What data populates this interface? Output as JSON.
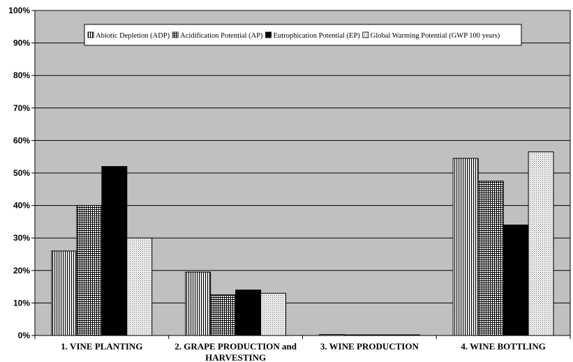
{
  "chart_data": {
    "type": "bar",
    "categories": [
      [
        "1. VINE PLANTING"
      ],
      [
        "2. GRAPE PRODUCTION and",
        "HARVESTING"
      ],
      [
        "3. WINE PRODUCTION"
      ],
      [
        "4. WINE BOTTLING"
      ]
    ],
    "series": [
      {
        "name": "Abiotic Depletion (ADP)",
        "values": [
          26,
          19.5,
          0.3,
          54.5
        ],
        "pattern": "vlines"
      },
      {
        "name": "Acidification Potential (AP)",
        "values": [
          40,
          12.5,
          0.2,
          47.5
        ],
        "pattern": "grid"
      },
      {
        "name": "Eutrophication Potential (EP)",
        "values": [
          52,
          14,
          0.2,
          34
        ],
        "pattern": "solid"
      },
      {
        "name": "Global Warming Potential (GWP 100 years)",
        "values": [
          30,
          13,
          0.2,
          56.5
        ],
        "pattern": "dots"
      }
    ],
    "ylim": [
      0,
      100
    ],
    "yticks": [
      "0%",
      "10%",
      "20%",
      "30%",
      "40%",
      "50%",
      "60%",
      "70%",
      "80%",
      "90%",
      "100%"
    ],
    "grid": true,
    "legend_position": "top",
    "colors": {
      "plot_bg": "#c0c0c0",
      "bar_fill": "#ffffff",
      "bar_ink": "#000000",
      "solid": "#000000"
    }
  }
}
